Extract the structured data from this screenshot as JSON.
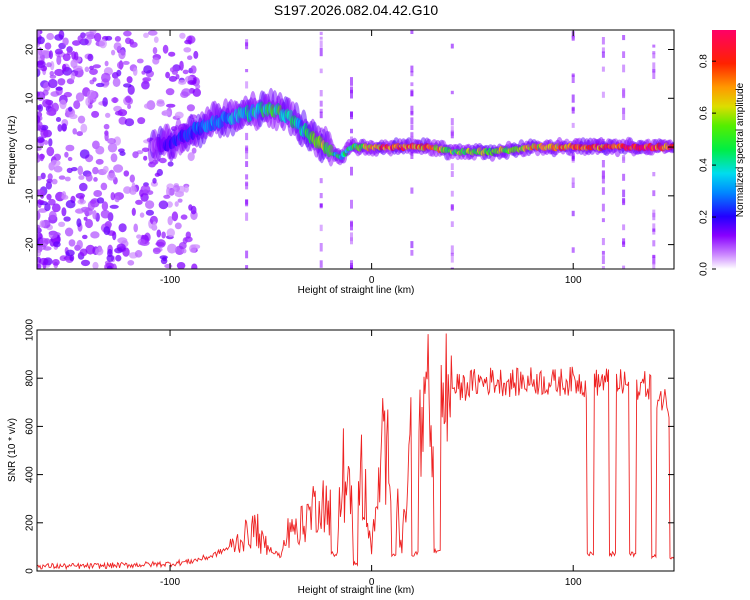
{
  "title": "S197.2026.082.04.42.G10",
  "chart_data": [
    {
      "type": "heatmap",
      "xlabel": "Height of straight line (km)",
      "ylabel": "Frequency (Hz)",
      "xlim": [
        -166,
        150
      ],
      "ylim": [
        -25,
        24
      ],
      "xticks": [
        -100,
        0,
        100
      ],
      "yticks": [
        -20,
        -10,
        0,
        10,
        20
      ],
      "colorbar": {
        "label": "Normalized spectral amplitude",
        "range": [
          0.0,
          0.92
        ],
        "ticks": [
          0.0,
          0.2,
          0.4,
          0.6,
          0.8
        ]
      },
      "ridge": {
        "x": [
          -166,
          -110,
          -100,
          -90,
          -80,
          -70,
          -60,
          -55,
          -50,
          -45,
          -40,
          -35,
          -30,
          -25,
          -20,
          -15,
          -10,
          -5,
          0,
          10,
          20,
          30,
          40,
          60,
          80,
          100,
          120,
          150
        ],
        "y": [
          null,
          0,
          1,
          3,
          5,
          6,
          7,
          7.5,
          8,
          7,
          6,
          4,
          2,
          1,
          -1,
          -2,
          0,
          0,
          0,
          0,
          0,
          0,
          -1,
          -1,
          0,
          0,
          0,
          0
        ],
        "peak_amplitude": [
          0,
          0.05,
          0.2,
          0.25,
          0.3,
          0.35,
          0.4,
          0.45,
          0.5,
          0.5,
          0.45,
          0.4,
          0.55,
          0.6,
          0.5,
          0.4,
          0.5,
          0.6,
          0.7,
          0.85,
          0.8,
          0.75,
          0.55,
          0.6,
          0.7,
          0.8,
          0.85,
          0.88
        ]
      }
    },
    {
      "type": "line",
      "xlabel": "Height of straight line (km)",
      "ylabel": "SNR (10 * v/v)",
      "xlim": [
        -166,
        150
      ],
      "ylim": [
        0,
        1000
      ],
      "xticks": [
        -100,
        0,
        100
      ],
      "yticks": [
        0,
        200,
        400,
        600,
        800,
        1000
      ],
      "color": "#ee2222",
      "series": [
        {
          "name": "SNR",
          "x": [
            -166,
            -140,
            -120,
            -100,
            -90,
            -80,
            -70,
            -62,
            -57,
            -55,
            -50,
            -45,
            -40,
            -35,
            -30,
            -25,
            -20,
            -15,
            -10,
            -5,
            0,
            5,
            10,
            15,
            20,
            25,
            30,
            35,
            40,
            45,
            50,
            60,
            70,
            80,
            90,
            100,
            108,
            115,
            122,
            130,
            138,
            142,
            150
          ],
          "y": [
            20,
            20,
            25,
            30,
            40,
            60,
            100,
            150,
            180,
            120,
            90,
            60,
            200,
            180,
            250,
            300,
            250,
            350,
            300,
            400,
            80,
            450,
            500,
            80,
            600,
            560,
            650,
            700,
            760,
            760,
            780,
            790,
            780,
            790,
            780,
            790,
            770,
            790,
            780,
            770,
            770,
            730,
            680
          ]
        }
      ],
      "dropouts": [
        {
          "x": [
            -20,
            -17
          ],
          "y": 70
        },
        {
          "x": [
            -9,
            -7
          ],
          "y": 30
        },
        {
          "x": [
            10,
            12
          ],
          "y": 70
        },
        {
          "x": [
            20,
            23
          ],
          "y": 70
        },
        {
          "x": [
            31,
            34
          ],
          "y": 80
        },
        {
          "x": [
            107,
            110
          ],
          "y": 70
        },
        {
          "x": [
            118,
            121
          ],
          "y": 70
        },
        {
          "x": [
            128,
            131
          ],
          "y": 70
        },
        {
          "x": [
            139,
            141
          ],
          "y": 60
        },
        {
          "x": [
            148,
            150
          ],
          "y": 60
        }
      ]
    }
  ]
}
